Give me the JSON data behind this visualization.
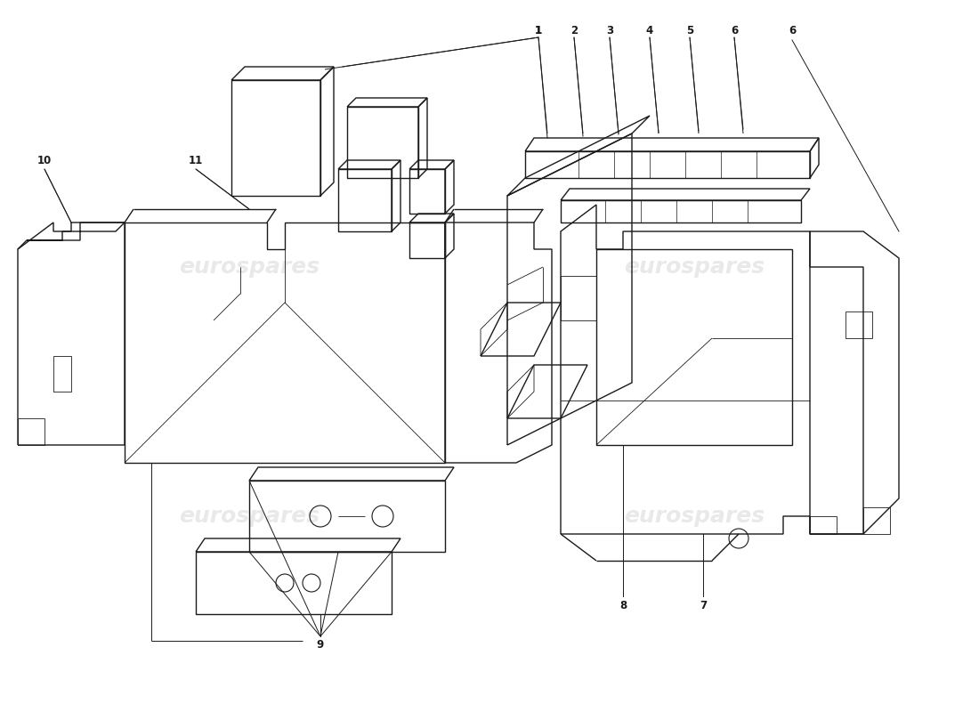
{
  "background_color": "#ffffff",
  "line_color": "#1a1a1a",
  "watermark_color": "#c8c8c8",
  "watermark_text": "eurospares",
  "lw": 1.0,
  "lw_thin": 0.6
}
